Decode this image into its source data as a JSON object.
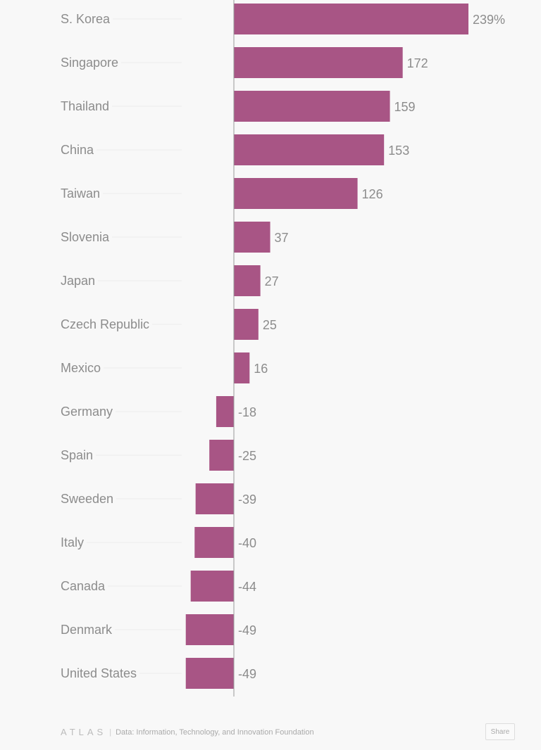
{
  "chart_data": {
    "type": "bar",
    "orientation": "horizontal",
    "categories": [
      "S. Korea",
      "Singapore",
      "Thailand",
      "China",
      "Taiwan",
      "Slovenia",
      "Japan",
      "Czech Republic",
      "Mexico",
      "Germany",
      "Spain",
      "Sweeden",
      "Italy",
      "Canada",
      "Denmark",
      "United States"
    ],
    "values": [
      239,
      172,
      159,
      153,
      126,
      37,
      27,
      25,
      16,
      -18,
      -25,
      -39,
      -40,
      -44,
      -49,
      -49
    ],
    "value_labels": [
      "239%",
      "172",
      "159",
      "153",
      "126",
      "37",
      "27",
      "25",
      "16",
      "-18",
      "-25",
      "-39",
      "-40",
      "-44",
      "-49",
      "-49"
    ],
    "unit": "%",
    "xlim": [
      -49,
      239
    ],
    "bar_color": "#a85585",
    "title": "",
    "xlabel": "",
    "ylabel": ""
  },
  "footer": {
    "logo": "ATLAS",
    "source": "Data: Information, Technology, and Innovation Foundation",
    "share_label": "Share"
  }
}
